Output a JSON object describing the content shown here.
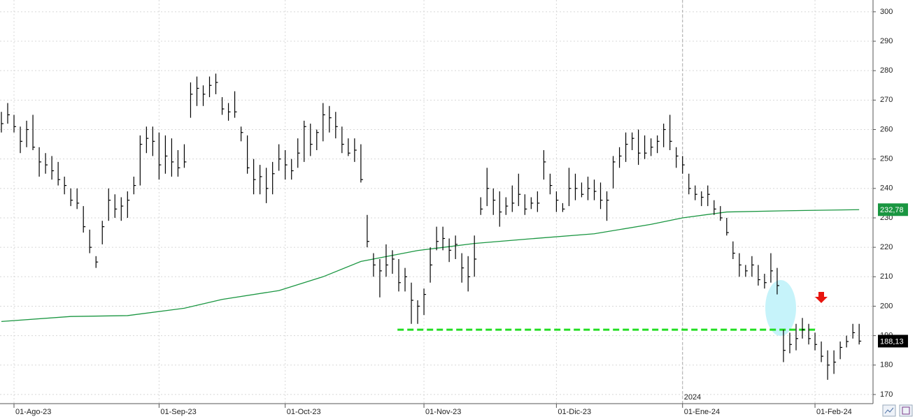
{
  "chart_data": {
    "type": "ohlc",
    "color": "#000000",
    "categories": [
      null,
      null,
      "01-Ago-23",
      null,
      null,
      null,
      null,
      null,
      null,
      null,
      null,
      null,
      null,
      null,
      null,
      null,
      null,
      null,
      null,
      null,
      null,
      null,
      null,
      null,
      null,
      "01-Sep-23",
      null,
      null,
      null,
      null,
      null,
      null,
      null,
      null,
      null,
      null,
      null,
      null,
      null,
      null,
      null,
      null,
      null,
      null,
      null,
      "01-Oct-23",
      null,
      null,
      null,
      null,
      null,
      null,
      null,
      null,
      null,
      null,
      null,
      null,
      null,
      null,
      null,
      null,
      null,
      null,
      null,
      null,
      null,
      "01-Nov-23",
      null,
      null,
      null,
      null,
      null,
      null,
      null,
      null,
      null,
      null,
      null,
      null,
      null,
      null,
      null,
      null,
      null,
      null,
      null,
      null,
      "01-Dic-23",
      null,
      null,
      null,
      null,
      null,
      null,
      null,
      null,
      null,
      null,
      null,
      null,
      null,
      null,
      null,
      null,
      null,
      null,
      null,
      "01-Ene-24",
      null,
      null,
      null,
      null,
      null,
      null,
      null,
      null,
      null,
      null,
      null,
      null,
      null,
      null,
      null,
      null,
      null,
      null,
      null,
      null,
      "01-Feb-24",
      null,
      null,
      null,
      null,
      null,
      null,
      null
    ],
    "high": [
      266,
      269,
      265,
      261,
      263,
      265,
      254,
      252,
      251,
      249,
      244,
      240,
      240,
      234,
      226,
      217,
      229,
      240,
      238,
      237,
      239,
      244,
      258,
      261,
      261,
      259,
      258,
      257,
      253,
      255,
      276,
      278,
      275,
      278,
      279,
      271,
      269,
      273,
      261,
      258,
      250,
      248,
      247,
      249,
      255,
      253,
      250,
      257,
      263,
      262,
      260,
      269,
      268,
      266,
      261,
      257,
      257,
      255,
      231,
      218,
      216,
      221,
      219,
      216,
      213,
      208,
      202,
      206,
      220,
      227,
      227,
      223,
      224,
      218,
      217,
      224,
      237,
      247,
      240,
      239,
      237,
      241,
      245,
      238,
      237,
      239,
      253,
      245,
      239,
      235,
      247,
      245,
      242,
      244,
      243,
      242,
      239,
      251,
      254,
      259,
      259,
      260,
      258,
      257,
      258,
      262,
      265,
      254,
      251,
      245,
      241,
      239,
      241,
      236,
      234,
      230,
      222,
      218,
      214,
      217,
      214,
      211,
      218,
      213,
      192,
      191,
      194,
      196,
      194,
      191,
      188,
      185,
      185,
      188,
      190,
      194,
      194
    ],
    "low": [
      259,
      262,
      259,
      252,
      254,
      253,
      244,
      245,
      243,
      241,
      238,
      234,
      233,
      225,
      218,
      213,
      221,
      229,
      230,
      229,
      230,
      238,
      241,
      252,
      251,
      243,
      245,
      244,
      244,
      247,
      264,
      268,
      268,
      271,
      272,
      265,
      263,
      264,
      256,
      245,
      238,
      238,
      235,
      238,
      246,
      243,
      243,
      247,
      249,
      251,
      253,
      256,
      259,
      257,
      252,
      251,
      249,
      242,
      220,
      210,
      203,
      210,
      211,
      205,
      205,
      194,
      194,
      197,
      208,
      219,
      219,
      215,
      216,
      208,
      205,
      210,
      231,
      234,
      231,
      227,
      231,
      232,
      234,
      231,
      233,
      232,
      243,
      238,
      232,
      232,
      234,
      236,
      237,
      236,
      236,
      233,
      229,
      240,
      247,
      249,
      253,
      248,
      250,
      251,
      252,
      254,
      253,
      247,
      245,
      238,
      236,
      234,
      234,
      231,
      229,
      224,
      216,
      210,
      210,
      210,
      207,
      206,
      208,
      204,
      181,
      184,
      185,
      189,
      187,
      185,
      181,
      175,
      177,
      182,
      186,
      189,
      187
    ],
    "close": [
      262,
      265,
      261,
      256,
      260,
      254,
      249,
      248,
      246,
      243,
      241,
      236,
      235,
      227,
      220,
      215,
      227,
      236,
      233,
      234,
      236,
      241,
      255,
      257,
      256,
      248,
      251,
      249,
      247,
      249,
      272,
      274,
      272,
      275,
      276,
      267,
      266,
      266,
      259,
      247,
      243,
      244,
      240,
      245,
      250,
      248,
      246,
      252,
      261,
      255,
      259,
      265,
      264,
      261,
      255,
      252,
      253,
      243,
      222,
      214,
      212,
      214,
      216,
      208,
      210,
      202,
      200,
      204,
      214,
      222,
      223,
      219,
      221,
      213,
      210,
      216,
      233,
      240,
      236,
      232,
      234,
      235,
      238,
      233,
      235,
      235,
      249,
      241,
      236,
      233,
      240,
      240,
      238,
      240,
      239,
      236,
      236,
      249,
      251,
      255,
      257,
      252,
      252,
      254,
      256,
      260,
      256,
      251,
      248,
      240,
      238,
      237,
      238,
      233,
      230,
      225,
      218,
      214,
      212,
      214,
      209,
      208,
      212,
      207,
      185,
      187,
      189,
      192,
      189,
      187,
      183,
      180,
      181,
      186,
      188,
      191,
      188.13
    ],
    "moving_average": {
      "color": "#1a9641",
      "x": [
        0,
        11,
        20,
        29,
        35,
        44,
        51,
        57,
        66,
        75,
        84,
        94,
        103,
        108,
        115,
        124,
        136
      ],
      "values": [
        194.8,
        196.5,
        196.8,
        199.3,
        202.3,
        205.3,
        210,
        215.2,
        218.9,
        221.3,
        222.9,
        224.6,
        227.8,
        230,
        232,
        232.4,
        232.78
      ]
    },
    "support": {
      "color": "#22dd22",
      "value": 192,
      "x": [
        62.8,
        129
      ]
    },
    "price_labels": [
      {
        "value": 232.78,
        "label": "232,78",
        "color": "#1a9641"
      },
      {
        "value": 188.13,
        "label": "188,13",
        "color": "#000000"
      }
    ],
    "year_marker": {
      "x": 108,
      "label": "2024"
    },
    "xlim": [
      -0.22,
      138.2
    ],
    "ylim": [
      166.9,
      304
    ],
    "yticks": [
      170,
      180,
      190,
      200,
      210,
      220,
      230,
      240,
      250,
      260,
      270,
      280,
      290,
      300
    ],
    "grid": true
  }
}
